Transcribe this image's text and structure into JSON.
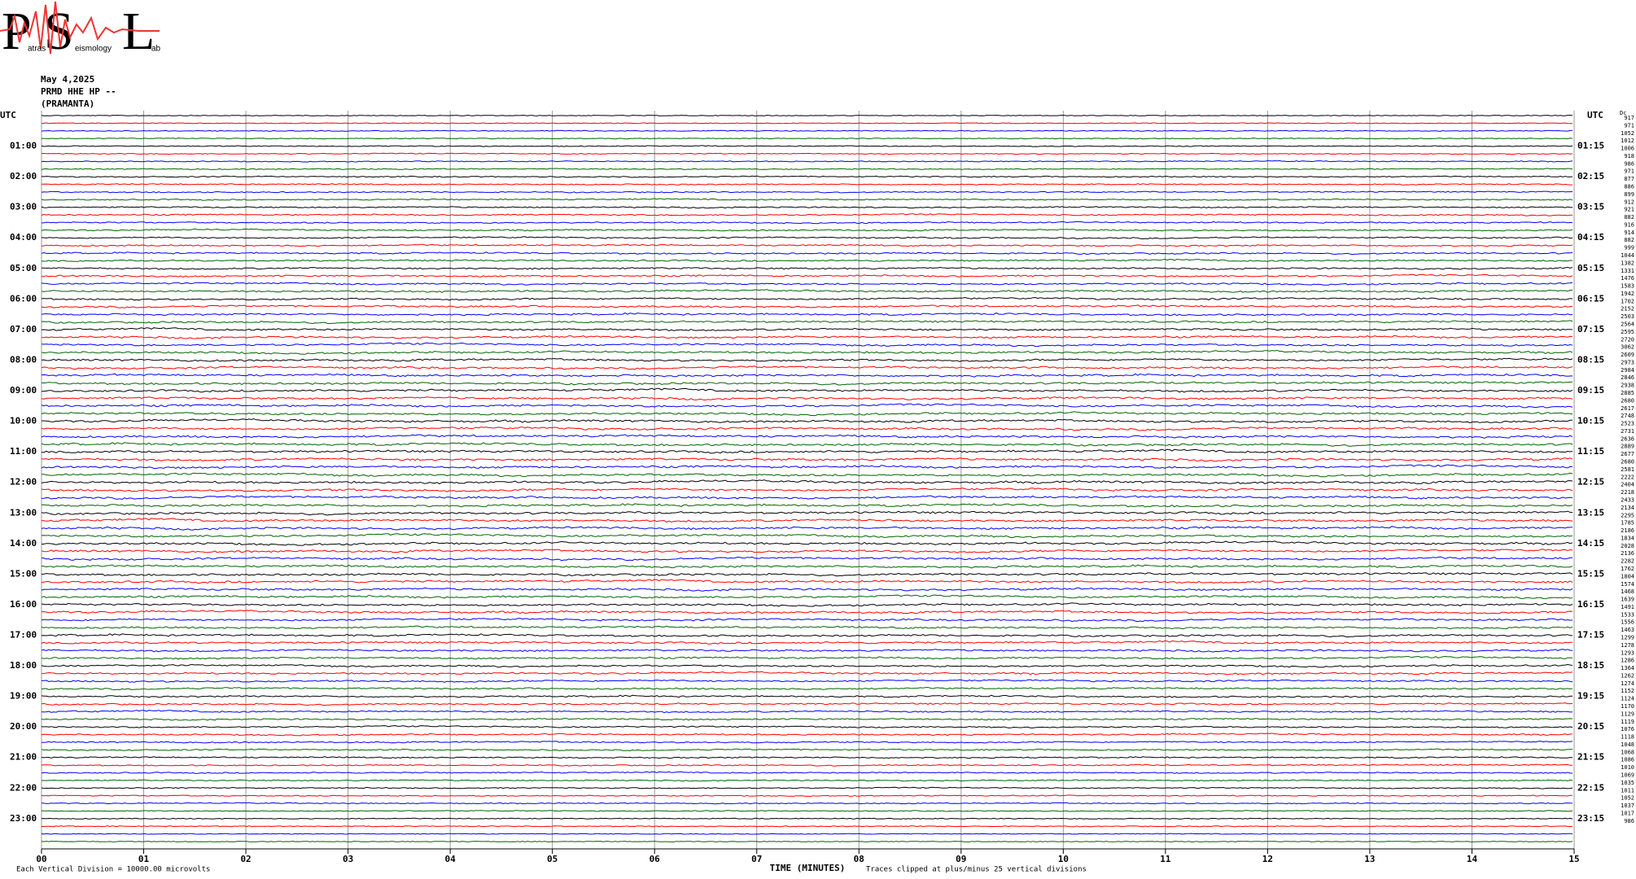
{
  "chart_data": {
    "type": "helicorder",
    "logo": {
      "letters": [
        "P",
        "S",
        "L"
      ],
      "words": [
        "atras",
        "eismology",
        "ab"
      ]
    },
    "header": [
      "May 4,2025",
      "PRMD HHE HP --",
      "(PRAMANTA)"
    ],
    "left_header": "UTC",
    "right_header": "UTC",
    "right_corner": "Dc",
    "left_labels": [
      "01:00",
      "02:00",
      "03:00",
      "04:00",
      "05:00",
      "06:00",
      "07:00",
      "08:00",
      "09:00",
      "10:00",
      "11:00",
      "12:00",
      "13:00",
      "14:00",
      "15:00",
      "16:00",
      "17:00",
      "18:00",
      "19:00",
      "20:00",
      "21:00",
      "22:00",
      "23:00"
    ],
    "right_labels": [
      "01:15",
      "02:15",
      "03:15",
      "04:15",
      "05:15",
      "06:15",
      "07:15",
      "08:15",
      "09:15",
      "10:15",
      "11:15",
      "12:15",
      "13:15",
      "14:15",
      "15:15",
      "16:15",
      "17:15",
      "18:15",
      "19:15",
      "20:15",
      "21:15",
      "22:15",
      "23:15"
    ],
    "trace_labels": [
      "917",
      "971",
      "1052",
      "1012",
      "1006",
      "918",
      "986",
      "971",
      "877",
      "886",
      "899",
      "912",
      "921",
      "882",
      "916",
      "914",
      "882",
      "999",
      "1044",
      "1382",
      "1331",
      "1476",
      "1583",
      "1942",
      "1702",
      "2152",
      "2503",
      "2564",
      "2595",
      "2720",
      "3062",
      "2609",
      "2973",
      "2984",
      "2846",
      "2938",
      "2885",
      "2680",
      "2617",
      "2748",
      "2523",
      "2731",
      "2636",
      "2889",
      "2677",
      "2680",
      "2581",
      "2222",
      "2404",
      "2218",
      "2433",
      "2134",
      "2295",
      "1785",
      "2186",
      "1834",
      "2028",
      "2136",
      "2282",
      "1762",
      "1804",
      "1574",
      "1468",
      "1639",
      "1491",
      "1533",
      "1556",
      "1463",
      "1299",
      "1278",
      "1293",
      "1286",
      "1364",
      "1262",
      "1274",
      "1152",
      "1124",
      "1170",
      "1129",
      "1119",
      "1076",
      "1118",
      "1048",
      "1068",
      "1086",
      "1010",
      "1069",
      "1035",
      "1011",
      "1052",
      "1037",
      "1017",
      "986"
    ],
    "trace_colors": [
      "#000000",
      "#ff0000",
      "#0000ff",
      "#006400"
    ],
    "xlim": [
      0,
      15
    ],
    "xticks": [
      {
        "value": 0,
        "label": "00"
      },
      {
        "value": 1,
        "label": "01"
      },
      {
        "value": 2,
        "label": "02"
      },
      {
        "value": 3,
        "label": "03"
      },
      {
        "value": 4,
        "label": "04"
      },
      {
        "value": 5,
        "label": "05"
      },
      {
        "value": 6,
        "label": "06"
      },
      {
        "value": 7,
        "label": "07"
      },
      {
        "value": 8,
        "label": "08"
      },
      {
        "value": 9,
        "label": "09"
      },
      10,
      11,
      12,
      13,
      14,
      15
    ],
    "xlabel": "TIME (MINUTES)",
    "footer_left": "Each Vertical Division = 10000.00 microvolts",
    "footer_right": "Traces clipped at plus/minus 25 vertical divisions",
    "grid": true
  }
}
